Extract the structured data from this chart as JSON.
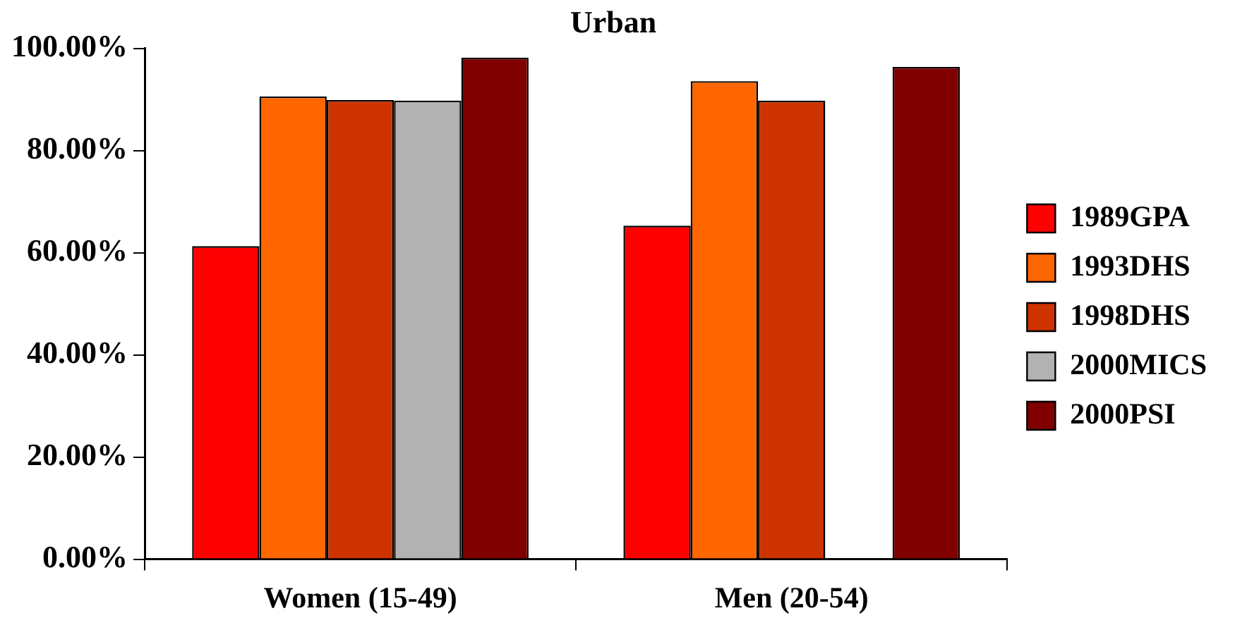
{
  "chart_data": {
    "type": "bar",
    "title": "Urban",
    "categories": [
      "Women (15-49)",
      "Men (20-54)"
    ],
    "series": [
      {
        "name": "1989GPA",
        "color": "#ff0000",
        "values": [
          61.3,
          65.3
        ]
      },
      {
        "name": "1993DHS",
        "color": "#ff6600",
        "values": [
          90.6,
          93.6
        ]
      },
      {
        "name": "1998DHS",
        "color": "#cc3300",
        "values": [
          89.9,
          89.8
        ]
      },
      {
        "name": "2000MICS",
        "color": "#b2b2b2",
        "values": [
          89.8,
          null
        ]
      },
      {
        "name": "2000PSI",
        "color": "#800000",
        "values": [
          98.2,
          96.4
        ]
      }
    ],
    "ylim": [
      0,
      100
    ],
    "yticks": [
      {
        "value": 0,
        "label": "0.00%"
      },
      {
        "value": 20,
        "label": "20.00%"
      },
      {
        "value": 40,
        "label": "40.00%"
      },
      {
        "value": 60,
        "label": "60.00%"
      },
      {
        "value": 80,
        "label": "80.00%"
      },
      {
        "value": 100,
        "label": "100.00%"
      }
    ],
    "grid": false,
    "legend": "right"
  }
}
